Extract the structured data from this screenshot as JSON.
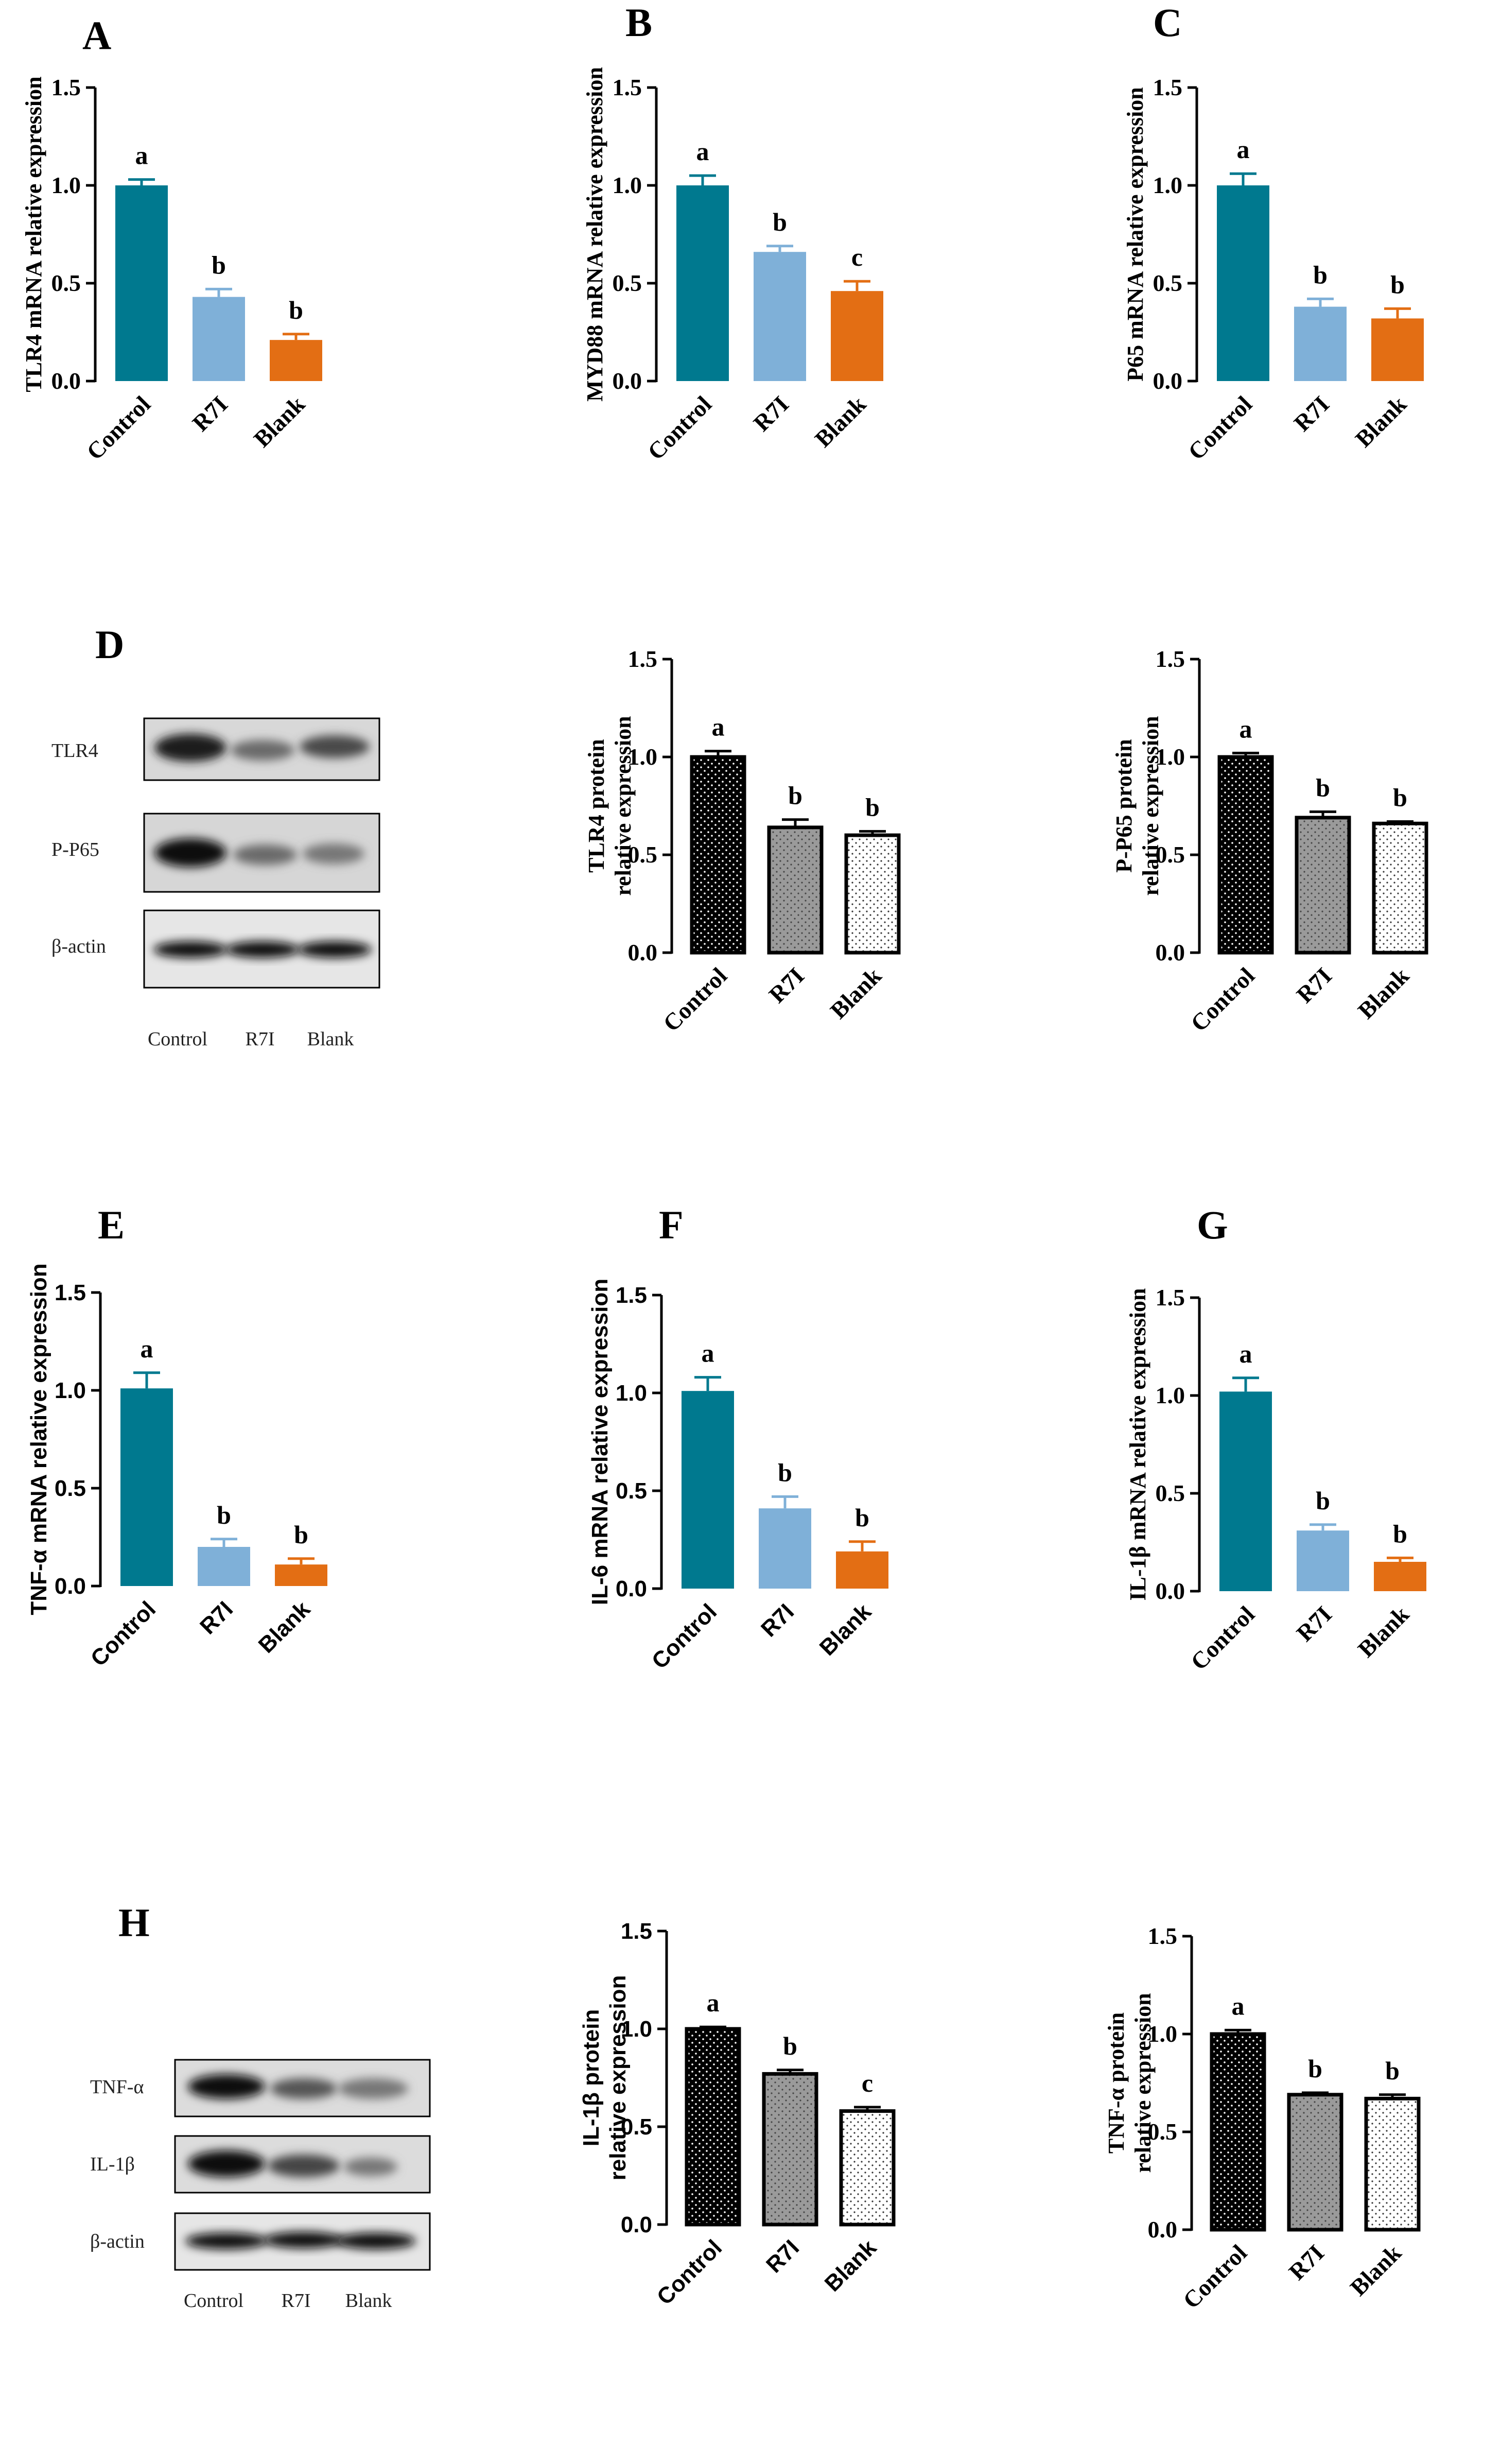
{
  "colors": {
    "control": "#00798f",
    "r7i": "#7fb0d8",
    "blank": "#e36e14"
  },
  "panels": {
    "A": "A",
    "B": "B",
    "C": "C",
    "D": "D",
    "E": "E",
    "F": "F",
    "G": "G",
    "H": "H"
  },
  "blots": [
    {
      "id": "D",
      "bands": [
        "TLR4",
        "P-P65",
        "β-actin"
      ],
      "lanes": [
        "Control",
        "R7I",
        "Blank"
      ]
    },
    {
      "id": "H",
      "bands": [
        "TNF-α",
        "IL-1β",
        "β-actin"
      ],
      "lanes": [
        "Control",
        "R7I",
        "Blank"
      ]
    }
  ],
  "chart_data": [
    {
      "id": "A",
      "type": "bar",
      "style": "solid",
      "font": "serif",
      "categories": [
        "Control",
        "R7I",
        "Blank"
      ],
      "values": [
        1.0,
        0.43,
        0.21
      ],
      "errors": [
        0.03,
        0.04,
        0.03
      ],
      "letters": [
        "a",
        "b",
        "b"
      ],
      "ylabel": [
        "TLR4 mRNA relative expression"
      ],
      "ylim": [
        0,
        1.5
      ],
      "yticks": [
        "0.0",
        "0.5",
        "1.0",
        "1.5"
      ]
    },
    {
      "id": "B",
      "type": "bar",
      "style": "solid",
      "font": "serif",
      "categories": [
        "Control",
        "R7I",
        "Blank"
      ],
      "values": [
        1.0,
        0.66,
        0.46
      ],
      "errors": [
        0.05,
        0.03,
        0.05
      ],
      "letters": [
        "a",
        "b",
        "c"
      ],
      "ylabel": [
        "MYD88 mRNA relative expression"
      ],
      "ylim": [
        0,
        1.5
      ],
      "yticks": [
        "0.0",
        "0.5",
        "1.0",
        "1.5"
      ]
    },
    {
      "id": "C",
      "type": "bar",
      "style": "solid",
      "font": "serif",
      "categories": [
        "Control",
        "R7I",
        "Blank"
      ],
      "values": [
        1.0,
        0.38,
        0.32
      ],
      "errors": [
        0.06,
        0.04,
        0.05
      ],
      "letters": [
        "a",
        "b",
        "b"
      ],
      "ylabel": [
        "P65 mRNA relative expression"
      ],
      "ylim": [
        0,
        1.5
      ],
      "yticks": [
        "0.0",
        "0.5",
        "1.0",
        "1.5"
      ]
    },
    {
      "id": "D1",
      "type": "bar",
      "style": "pattern",
      "font": "serif",
      "categories": [
        "Control",
        "R7I",
        "Blank"
      ],
      "values": [
        1.0,
        0.64,
        0.6
      ],
      "errors": [
        0.03,
        0.04,
        0.02
      ],
      "letters": [
        "a",
        "b",
        "b"
      ],
      "ylabel": [
        "TLR4 protein",
        "relative expression"
      ],
      "ylim": [
        0,
        1.5
      ],
      "yticks": [
        "0.0",
        "0.5",
        "1.0",
        "1.5"
      ]
    },
    {
      "id": "D2",
      "type": "bar",
      "style": "pattern",
      "font": "serif",
      "categories": [
        "Control",
        "R7I",
        "Blank"
      ],
      "values": [
        1.0,
        0.69,
        0.66
      ],
      "errors": [
        0.02,
        0.03,
        0.01
      ],
      "letters": [
        "a",
        "b",
        "b"
      ],
      "ylabel": [
        "P-P65 protein",
        "relative expression"
      ],
      "ylim": [
        0,
        1.5
      ],
      "yticks": [
        "0.0",
        "0.5",
        "1.0",
        "1.5"
      ]
    },
    {
      "id": "E",
      "type": "bar",
      "style": "solid",
      "font": "sans",
      "categories": [
        "Control",
        "R7I",
        "Blank"
      ],
      "values": [
        1.01,
        0.2,
        0.11
      ],
      "errors": [
        0.08,
        0.04,
        0.03
      ],
      "letters": [
        "a",
        "b",
        "b"
      ],
      "ylabel": [
        "TNF-α mRNA relative expression"
      ],
      "ylim": [
        0,
        1.5
      ],
      "yticks": [
        "0.0",
        "0.5",
        "1.0",
        "1.5"
      ]
    },
    {
      "id": "F",
      "type": "bar",
      "style": "solid",
      "font": "sans",
      "categories": [
        "Control",
        "R7I",
        "Blank"
      ],
      "values": [
        1.01,
        0.41,
        0.19
      ],
      "errors": [
        0.07,
        0.06,
        0.05
      ],
      "letters": [
        "a",
        "b",
        "b"
      ],
      "ylabel": [
        "IL-6 mRNA relative expression"
      ],
      "ylim": [
        0,
        1.5
      ],
      "yticks": [
        "0.0",
        "0.5",
        "1.0",
        "1.5"
      ]
    },
    {
      "id": "G",
      "type": "bar",
      "style": "solid",
      "font": "serif",
      "categories": [
        "Control",
        "R7I",
        "Blank"
      ],
      "values": [
        1.02,
        0.31,
        0.15
      ],
      "errors": [
        0.07,
        0.03,
        0.02
      ],
      "letters": [
        "a",
        "b",
        "b"
      ],
      "ylabel": [
        "IL-1β mRNA relative expression"
      ],
      "ylim": [
        0,
        1.5
      ],
      "yticks": [
        "0.0",
        "0.5",
        "1.0",
        "1.5"
      ]
    },
    {
      "id": "H1",
      "type": "bar",
      "style": "pattern",
      "font": "sans",
      "categories": [
        "Control",
        "R7I",
        "Blank"
      ],
      "values": [
        1.0,
        0.77,
        0.58
      ],
      "errors": [
        0.01,
        0.02,
        0.02
      ],
      "letters": [
        "a",
        "b",
        "c"
      ],
      "ylabel": [
        "IL-1β protein",
        "relative expression"
      ],
      "ylim": [
        0,
        1.5
      ],
      "yticks": [
        "0.0",
        "0.5",
        "1.0",
        "1.5"
      ]
    },
    {
      "id": "H2",
      "type": "bar",
      "style": "pattern",
      "font": "serif",
      "categories": [
        "Control",
        "R7I",
        "Blank"
      ],
      "values": [
        1.0,
        0.69,
        0.67
      ],
      "errors": [
        0.02,
        0.01,
        0.02
      ],
      "letters": [
        "a",
        "b",
        "b"
      ],
      "ylabel": [
        "TNF-α protein",
        "relative expression"
      ],
      "ylim": [
        0,
        1.5
      ],
      "yticks": [
        "0.0",
        "0.5",
        "1.0",
        "1.5"
      ]
    }
  ]
}
